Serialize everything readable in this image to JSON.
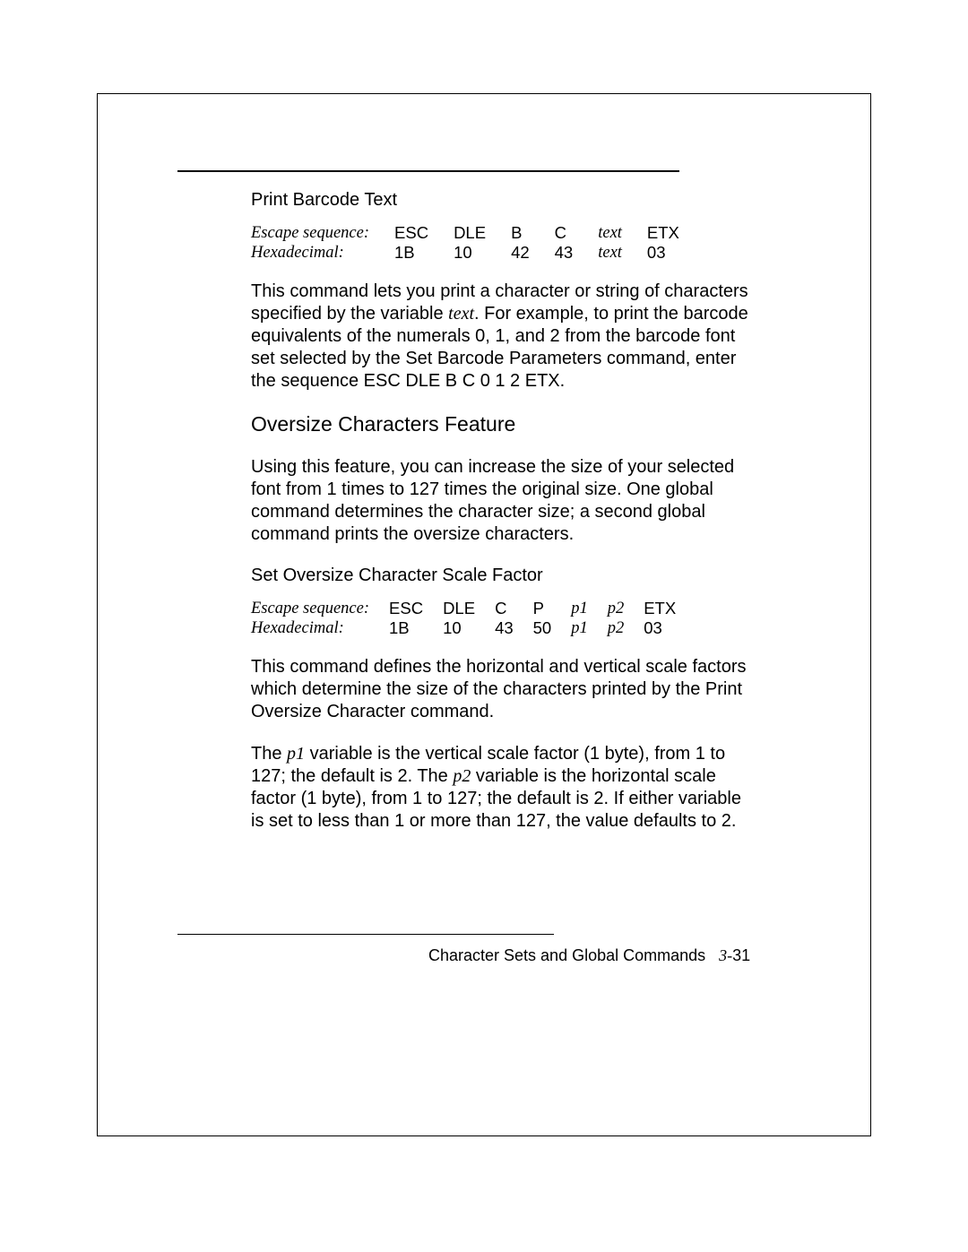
{
  "section1": {
    "title": "Print Barcode Text",
    "table": {
      "row1_label": "Escape sequence:",
      "row1": [
        "ESC",
        "DLE",
        "B",
        "C",
        "text",
        "ETX"
      ],
      "row2_label": "Hexadecimal:",
      "row2": [
        "1B",
        "10",
        "42",
        "43",
        "text",
        "03"
      ],
      "italic_cols": [
        4
      ]
    },
    "para_parts": {
      "a": "This command lets you print a character or string of characters specified by the variable",
      "var": "text",
      "b": ". For example, to print the barcode equivalents of the numerals 0, 1, and 2 from the barcode font set selected by the Set Barcode Parameters command, enter the sequence ESC DLE B C 0 1 2 ETX."
    }
  },
  "section2": {
    "heading": "Oversize Characters Feature",
    "para1": "Using this feature, you can increase the size of your selected font from 1 times to 127 times the original size. One global command determines the character size; a second global command prints the oversize characters.",
    "subtitle": "Set Oversize Character Scale Factor",
    "table": {
      "row1_label": "Escape sequence:",
      "row1": [
        "ESC",
        "DLE",
        "C",
        "P",
        "p1",
        "p2",
        "ETX"
      ],
      "row2_label": "Hexadecimal:",
      "row2": [
        "1B",
        "10",
        "43",
        "50",
        "p1",
        "p2",
        "03"
      ],
      "italic_cols": [
        4,
        5
      ]
    },
    "para2": "This command defines the horizontal and vertical scale factors which determine the size of the characters printed by the Print Oversize Character command.",
    "para3_parts": {
      "a": "The ",
      "v1": "p1",
      "b": " variable is the vertical scale factor (1 byte), from 1 to 127; the default is 2. The ",
      "v2": "p2",
      "c": " variable is the horizontal scale factor (1 byte), from 1 to 127; the default is 2. If either variable is set to less than 1 or more than 127, the value defaults to 2."
    }
  },
  "footer": {
    "text": "Character Sets and Global Commands",
    "page_prefix": "3-",
    "page": "31"
  }
}
